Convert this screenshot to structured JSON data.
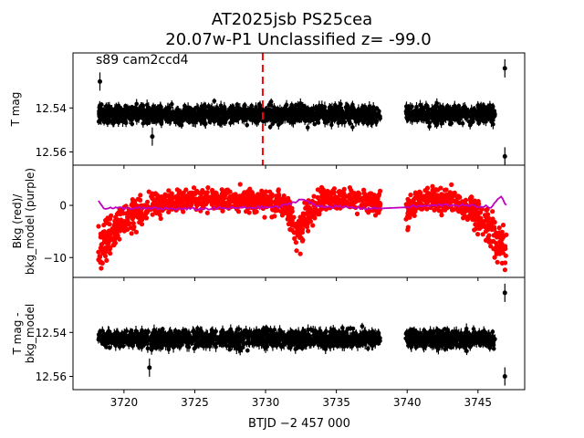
{
  "figure": {
    "title_line1": "AT2025jsb  PS25cea",
    "title_line2": "20.07w-P1 Unclassified z= -99.0",
    "xlabel": "BTJD −2 457 000",
    "colors": {
      "mag": "#000000",
      "bkg": "#ff0000",
      "bkg_model": "#bf00bf",
      "marker": "#ff0000"
    }
  },
  "chart_data": [
    {
      "type": "scatter",
      "panel": "top",
      "annotation": "s89 cam2ccd4",
      "ylabel": "T mag",
      "y_inverted": true,
      "xlim": [
        3716.4,
        3748.3
      ],
      "ylim": [
        12.566,
        12.515
      ],
      "yticks": [
        12.54,
        12.56
      ],
      "ytick_labels": [
        "12.54",
        "12.56"
      ],
      "marker_line_x": 3729.8,
      "segments": [
        [
          3718.2,
          3738.1
        ],
        [
          3739.9,
          3746.2
        ]
      ],
      "series": [
        {
          "center": 12.543,
          "spread": 0.004,
          "outliers": [
            [
              3718.3,
              12.528
            ],
            [
              3722.0,
              12.553
            ],
            [
              3746.9,
              12.522
            ],
            [
              3746.9,
              12.562
            ]
          ]
        }
      ]
    },
    {
      "type": "scatter",
      "panel": "middle",
      "ylabel": "Bkg (red)/\nbkg_model (purple)",
      "xlim": [
        3716.4,
        3748.3
      ],
      "ylim": [
        -13.8,
        7.7
      ],
      "yticks": [
        -10,
        0
      ],
      "ytick_labels": [
        "−10",
        "0"
      ],
      "series": [
        {
          "name": "Bkg",
          "profile": [
            [
              3718.2,
              -9
            ],
            [
              3719.0,
              -7
            ],
            [
              3720.0,
              -4
            ],
            [
              3722.0,
              -1
            ],
            [
              3725.0,
              0
            ],
            [
              3728.0,
              0
            ],
            [
              3731.5,
              -1
            ],
            [
              3732.3,
              -7
            ],
            [
              3733.0,
              -3
            ],
            [
              3734.0,
              0
            ],
            [
              3736.0,
              0
            ],
            [
              3738.1,
              -1
            ],
            [
              3739.9,
              -3
            ],
            [
              3741.0,
              0
            ],
            [
              3743.0,
              0
            ],
            [
              3745.0,
              -3
            ],
            [
              3746.2,
              -7
            ],
            [
              3747.0,
              -10
            ]
          ]
        },
        {
          "name": "bkg_model",
          "profile": [
            [
              3718.2,
              0.8
            ],
            [
              3718.6,
              -0.5
            ],
            [
              3725.0,
              -0.7
            ],
            [
              3731.0,
              -0.3
            ],
            [
              3732.6,
              1.2
            ],
            [
              3733.6,
              -0.1
            ],
            [
              3737.5,
              -0.6
            ],
            [
              3743.0,
              0.1
            ],
            [
              3746.0,
              -0.3
            ],
            [
              3746.6,
              1.8
            ],
            [
              3747.0,
              0.1
            ]
          ]
        }
      ]
    },
    {
      "type": "scatter",
      "panel": "bottom",
      "ylabel": "T mag -\nbkg_model",
      "y_inverted": true,
      "xlim": [
        3716.4,
        3748.3
      ],
      "ylim": [
        12.566,
        12.515
      ],
      "yticks": [
        12.54,
        12.56
      ],
      "ytick_labels": [
        "12.54",
        "12.56"
      ],
      "xticks": [
        3720,
        3725,
        3730,
        3735,
        3740,
        3745
      ],
      "xtick_labels": [
        "3720",
        "3725",
        "3730",
        "3735",
        "3740",
        "3745"
      ],
      "segments": [
        [
          3718.2,
          3738.1
        ],
        [
          3739.9,
          3746.2
        ]
      ],
      "series": [
        {
          "center": 12.543,
          "spread": 0.004,
          "outliers": [
            [
              3721.8,
              12.556
            ],
            [
              3746.9,
              12.522
            ],
            [
              3746.9,
              12.56
            ]
          ]
        }
      ]
    }
  ]
}
